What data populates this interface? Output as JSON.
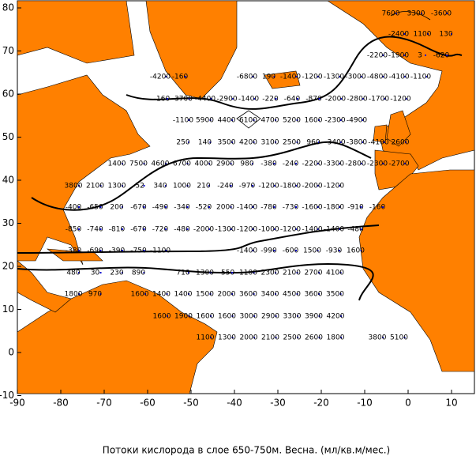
{
  "title": "Потоки кислорода в слое 650-750м. Весна. (мл/кв.м/мес.)",
  "xticks": [
    -90,
    -80,
    -70,
    -60,
    -50,
    -40,
    -30,
    -20,
    -10,
    0,
    10
  ],
  "yticks": [
    -10,
    0,
    10,
    20,
    30,
    40,
    50,
    60,
    70,
    80
  ],
  "labels": [
    [
      "7600",
      "3300",
      "-3600"
    ],
    [
      "-2400",
      "1100",
      "130"
    ],
    [
      "-2200",
      "-1900",
      "3",
      "-620"
    ],
    [
      "-4200",
      "-160"
    ],
    [
      "-6800",
      "190",
      "-1400",
      "-1200",
      "-1300",
      "-3000",
      "-4800",
      "-4100",
      "-1100"
    ],
    [
      "-160",
      "3700",
      "-4400",
      "-2900",
      "-1400",
      "-220",
      "-640",
      "-870",
      "-2000",
      "-2800",
      "-1700",
      "-1200"
    ],
    [
      "-1100",
      "5900",
      "4400",
      "6100",
      "4700",
      "5200",
      "1600",
      "-2300",
      "-4900"
    ],
    [
      "250",
      "140",
      "3500",
      "4200",
      "3100",
      "2500",
      "960",
      "-3400",
      "-3800",
      "-4100",
      "2600"
    ],
    [
      "1400",
      "7500",
      "4600",
      "6700",
      "4000",
      "2900",
      "980",
      "-380",
      "-240",
      "-2200",
      "-3300",
      "-2800",
      "-2300",
      "-2700"
    ],
    [
      "3800",
      "2100",
      "1300",
      "-52",
      "340",
      "1000",
      "210",
      "-240",
      "-970",
      "-1200",
      "-1800",
      "-2000",
      "-1200"
    ],
    [
      "-400",
      "-650",
      "200",
      "-670",
      "-490",
      "-340",
      "-520",
      "2000",
      "-1400",
      "-780",
      "-730",
      "-1600",
      "-1800",
      "-910",
      "-160"
    ],
    [
      "-850",
      "-740",
      "-810",
      "-670",
      "-720",
      "-480",
      "-2000",
      "-1300",
      "-1200",
      "-1000",
      "-1200",
      "-1400",
      "-1400",
      "-480"
    ],
    [
      "-380",
      "-690",
      "-390",
      "-750",
      "-1100"
    ],
    [
      "-1400",
      "-990",
      "-600",
      "1500",
      "-930",
      "1600"
    ],
    [
      "480",
      "30",
      "230",
      "890"
    ],
    [
      "710",
      "1300",
      "-550",
      "1100",
      "2300",
      "2100",
      "2700",
      "4100"
    ],
    [
      "1800",
      "970"
    ],
    [
      "1600",
      "1400",
      "1400",
      "1500",
      "2000",
      "3600",
      "3400",
      "4500",
      "3600",
      "3500"
    ],
    [
      "1600",
      "1900",
      "1600",
      "1600",
      "3000",
      "2900",
      "3300",
      "3900",
      "4200"
    ],
    [
      "1100",
      "1300",
      "2000",
      "2100",
      "2500",
      "2600",
      "1800"
    ],
    [
      "3800",
      "5100"
    ]
  ]
}
